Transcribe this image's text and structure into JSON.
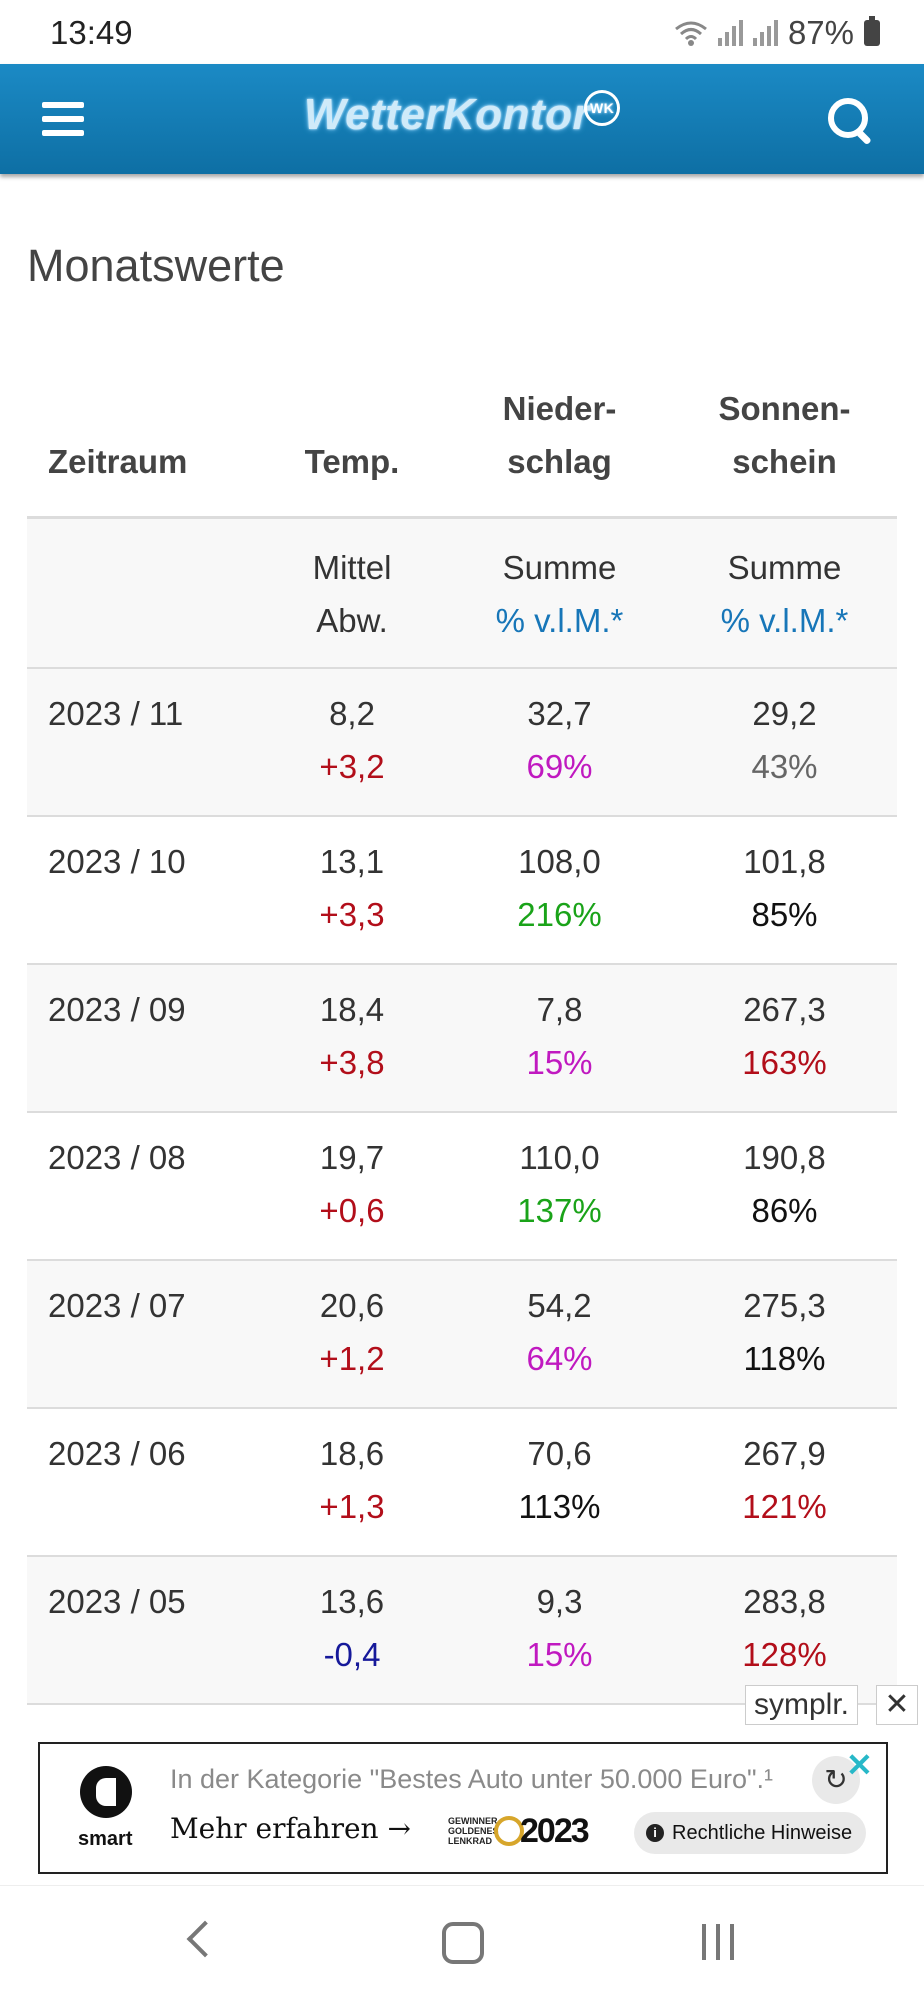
{
  "status_bar": {
    "time": "13:49",
    "battery": "87%"
  },
  "header": {
    "brand": "WetterKontor",
    "brand_mark": "WK"
  },
  "page": {
    "title": "Monatswerte"
  },
  "table": {
    "headers": {
      "period": "Zeitraum",
      "temp": "Temp.",
      "precip_line1": "Nieder-",
      "precip_line2": "schlag",
      "sun_line1": "Sonnen-",
      "sun_line2": "schein"
    },
    "subheaders": {
      "temp_line1": "Mittel",
      "temp_line2": "Abw.",
      "precip_line1": "Summe",
      "precip_line2": "% v.l.M.*",
      "sun_line1": "Summe",
      "sun_line2": "% v.l.M.*"
    },
    "rows": [
      {
        "period": "2023 / 11",
        "temp": "8,2",
        "temp_dev": "+3,2",
        "precip": "32,7",
        "precip_pct": "69%",
        "sun": "29,2",
        "sun_pct": "43%"
      },
      {
        "period": "2023 / 10",
        "temp": "13,1",
        "temp_dev": "+3,3",
        "precip": "108,0",
        "precip_pct": "216%",
        "sun": "101,8",
        "sun_pct": "85%"
      },
      {
        "period": "2023 / 09",
        "temp": "18,4",
        "temp_dev": "+3,8",
        "precip": "7,8",
        "precip_pct": "15%",
        "sun": "267,3",
        "sun_pct": "163%"
      },
      {
        "period": "2023 / 08",
        "temp": "19,7",
        "temp_dev": "+0,6",
        "precip": "110,0",
        "precip_pct": "137%",
        "sun": "190,8",
        "sun_pct": "86%"
      },
      {
        "period": "2023 / 07",
        "temp": "20,6",
        "temp_dev": "+1,2",
        "precip": "54,2",
        "precip_pct": "64%",
        "sun": "275,3",
        "sun_pct": "118%"
      },
      {
        "period": "2023 / 06",
        "temp": "18,6",
        "temp_dev": "+1,3",
        "precip": "70,6",
        "precip_pct": "113%",
        "sun": "267,9",
        "sun_pct": "121%"
      },
      {
        "period": "2023 / 05",
        "temp": "13,6",
        "temp_dev": "-0,4",
        "precip": "9,3",
        "precip_pct": "15%",
        "sun": "283,8",
        "sun_pct": "128%"
      }
    ]
  },
  "ad": {
    "choice_label": "symplr.",
    "close_symbol": "✕",
    "brand": "smart",
    "claim": "In der Kategorie \"Bestes Auto unter 50.000 Euro\".¹",
    "cta": "Mehr erfahren →",
    "award_text": "GEWINNER GOLDENES LENKRAD",
    "award_year": "2023",
    "legal": "Rechtliche Hinweise",
    "info_symbol": "i",
    "replay_symbol": "↻",
    "x_symbol": "✕"
  },
  "icons": {
    "menu": "hamburger-icon",
    "search": "search-icon",
    "wifi": "wifi-icon",
    "signal": "signal-icon",
    "battery": "battery-icon",
    "back": "back-icon",
    "home": "home-icon",
    "recents": "recents-icon"
  },
  "colors": {
    "header_bg": "#1b8ac5",
    "link": "#1776b8",
    "warm": "#b20e1a",
    "cold": "#16199a",
    "dry": "#c019c0",
    "wet": "#1aa319"
  }
}
